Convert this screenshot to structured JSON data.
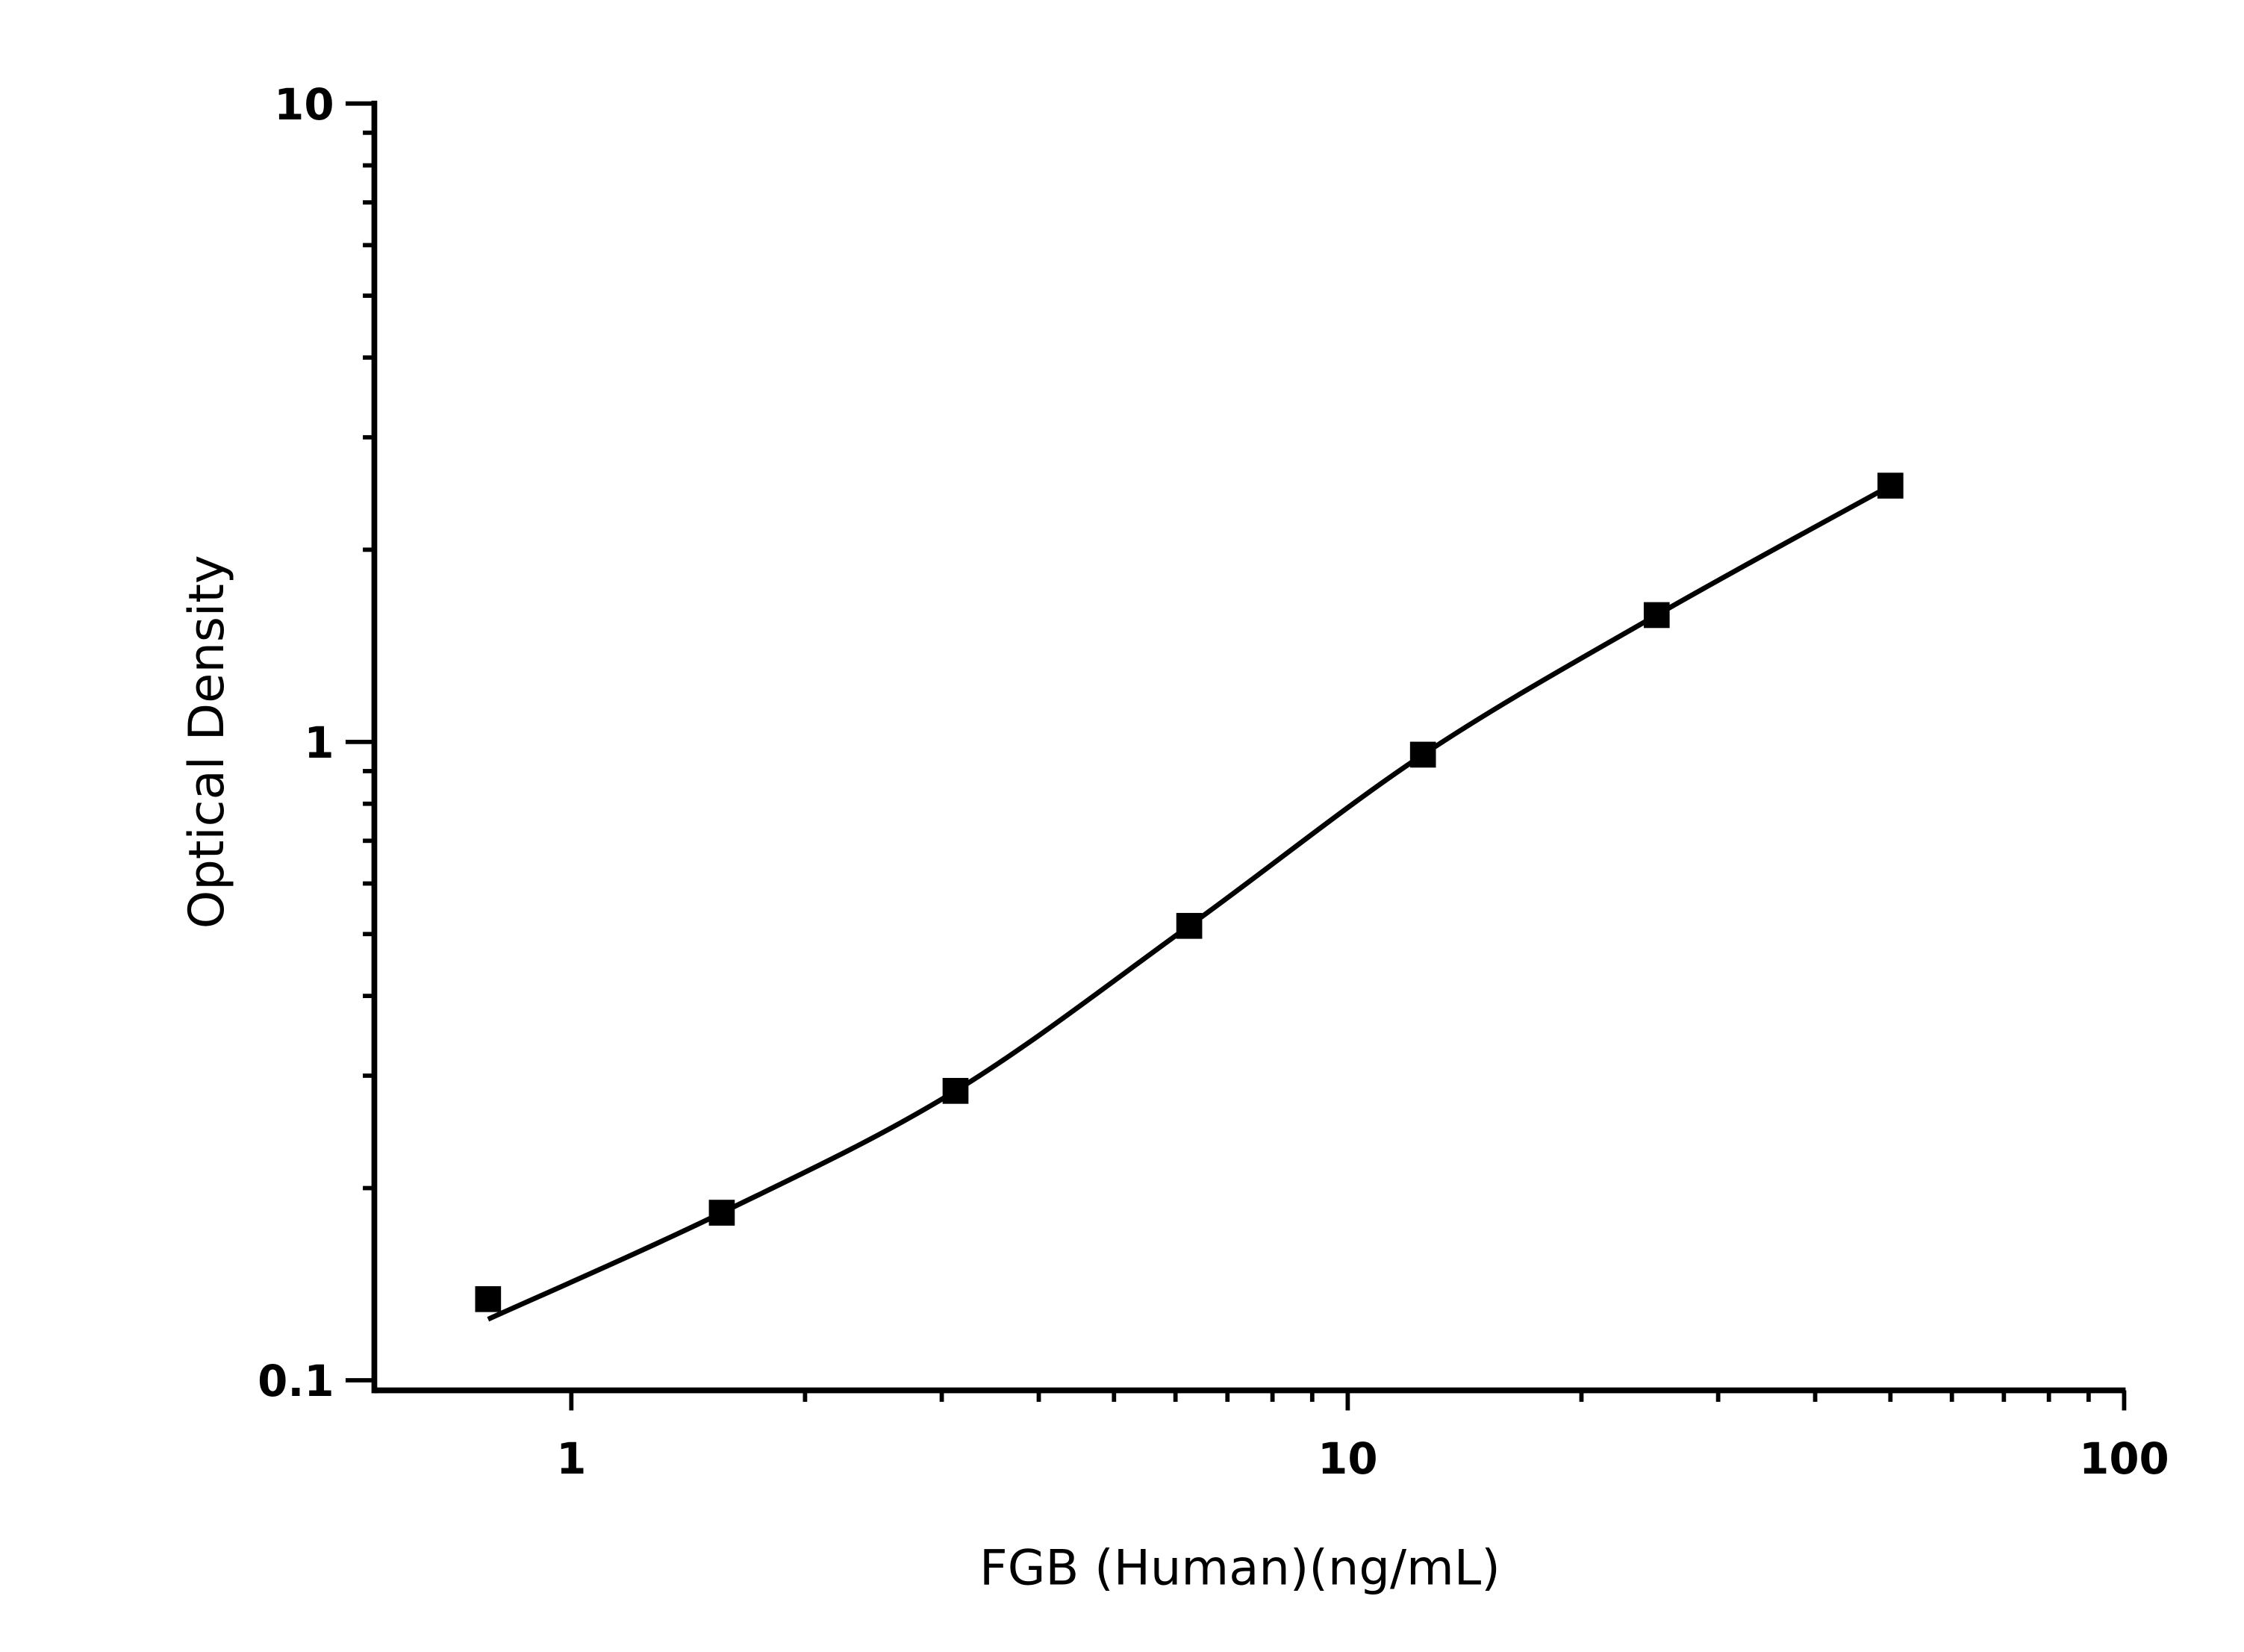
{
  "chart_data": {
    "type": "scatter",
    "title": "",
    "xlabel": "FGB (Human)(ng/mL)",
    "ylabel": "Optical Density",
    "xscale": "log",
    "yscale": "log",
    "xlim": [
      0.557,
      100
    ],
    "ylim": [
      0.0964,
      10
    ],
    "x_ticks": [
      1,
      10,
      100
    ],
    "x_tick_labels": [
      "1",
      "10",
      "100"
    ],
    "y_ticks": [
      0.1,
      1,
      10
    ],
    "y_tick_labels": [
      "0.1",
      "1",
      "10"
    ],
    "grid": false,
    "legend": "none",
    "marker": "square",
    "color": "#000000",
    "series": [
      {
        "x": [
          0.78125,
          1.5625,
          3.125,
          6.25,
          12.5,
          25,
          50
        ],
        "y": [
          0.134,
          0.183,
          0.284,
          0.515,
          0.955,
          1.58,
          2.52
        ]
      }
    ],
    "fit_curve": "smooth line through points"
  }
}
